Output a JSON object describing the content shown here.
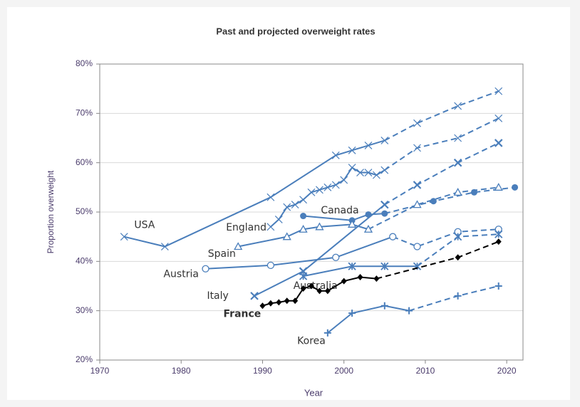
{
  "chart_data": {
    "type": "line",
    "title": "Past and projected overweight rates",
    "x_label": "Year",
    "y_label": "Proportion overweight",
    "xlim": [
      1970,
      2022
    ],
    "xticks": [
      1970,
      1980,
      1990,
      2000,
      2010,
      2020
    ],
    "ylim": [
      20,
      80
    ],
    "yticks": [
      {
        "value": 20,
        "label": "20%"
      },
      {
        "value": 30,
        "label": "30%"
      },
      {
        "value": 40,
        "label": "40%"
      },
      {
        "value": 50,
        "label": "50%"
      },
      {
        "value": 60,
        "label": "60%"
      },
      {
        "value": 70,
        "label": "70%"
      },
      {
        "value": 80,
        "label": "80%"
      }
    ],
    "grid": true,
    "series": [
      {
        "name": "USA",
        "color": "#4a7ebb",
        "marker": "x",
        "x": [
          1973,
          1978,
          1991,
          1999,
          2001,
          2003,
          2005
        ],
        "values": [
          45,
          43,
          53,
          61.5,
          62.5,
          63.5,
          64.5
        ],
        "projection_x": [
          2009,
          2014,
          2019
        ],
        "projection_values": [
          68,
          71.5,
          74.5
        ]
      },
      {
        "name": "England",
        "color": "#4a7ebb",
        "marker": "x",
        "x": [
          1991,
          1992,
          1993,
          1994,
          1995,
          1996,
          1997,
          1998,
          1999,
          2000,
          2001,
          2002,
          2003,
          2004,
          2005
        ],
        "values": [
          47,
          48.5,
          51,
          51.5,
          52.5,
          54,
          54.5,
          55,
          55.5,
          56.5,
          59,
          58,
          58,
          57.5,
          58.5
        ],
        "projection_x": [
          2009,
          2014,
          2019
        ],
        "projection_values": [
          63,
          65,
          69
        ]
      },
      {
        "name": "Canada",
        "color": "#4a7ebb",
        "marker": "circle",
        "x": [
          1995,
          2001,
          2003,
          2005
        ],
        "values": [
          49.2,
          48.3,
          49.5,
          49.7
        ],
        "projection_x": [
          2011,
          2016,
          2021
        ],
        "projection_values": [
          52.2,
          54,
          55
        ]
      },
      {
        "name": "Spain",
        "color": "#4a7ebb",
        "marker": "triangle",
        "x": [
          1987,
          1993,
          1995,
          1997,
          2001,
          2003
        ],
        "values": [
          43,
          45,
          46.5,
          47,
          47.5,
          46.5
        ],
        "projection_x": [
          2009,
          2014,
          2019
        ],
        "projection_values": [
          51.5,
          54,
          55
        ]
      },
      {
        "name": "Austria",
        "color": "#4a7ebb",
        "marker": "circle-open",
        "x": [
          1983,
          1991,
          1999,
          2006
        ],
        "values": [
          38.5,
          39.2,
          40.8,
          45
        ],
        "projection_x": [
          2009,
          2014,
          2019
        ],
        "projection_values": [
          43,
          46,
          46.5
        ]
      },
      {
        "name": "Australia",
        "color": "#4a7ebb",
        "marker": "x-bold",
        "x": [
          1989,
          1995,
          2005
        ],
        "values": [
          33,
          38,
          51.5
        ],
        "projection_x": [
          2009,
          2014,
          2019
        ],
        "projection_values": [
          55.5,
          60,
          64
        ]
      },
      {
        "name": "Italy",
        "color": "#4a7ebb",
        "marker": "star",
        "x": [
          1995,
          2001,
          2005,
          2009
        ],
        "values": [
          37,
          39,
          39,
          39
        ],
        "projection_x": [
          2014,
          2019
        ],
        "projection_values": [
          45,
          45.5
        ]
      },
      {
        "name": "France",
        "color": "#000000",
        "marker": "diamond",
        "x": [
          1990,
          1991,
          1992,
          1993,
          1994,
          1995,
          1996,
          1997,
          1998,
          2000,
          2002,
          2004
        ],
        "values": [
          31,
          31.5,
          31.7,
          32,
          32,
          34.5,
          35,
          34,
          34,
          36,
          36.8,
          36.5
        ],
        "projection_x": [
          2014,
          2019
        ],
        "projection_values": [
          40.8,
          44
        ]
      },
      {
        "name": "Korea",
        "color": "#4a7ebb",
        "marker": "plus",
        "x": [
          1998,
          2001,
          2005,
          2008
        ],
        "values": [
          25.5,
          29.5,
          31,
          30
        ],
        "projection_x": [
          2014,
          2019
        ],
        "projection_values": [
          33,
          35
        ]
      }
    ]
  }
}
